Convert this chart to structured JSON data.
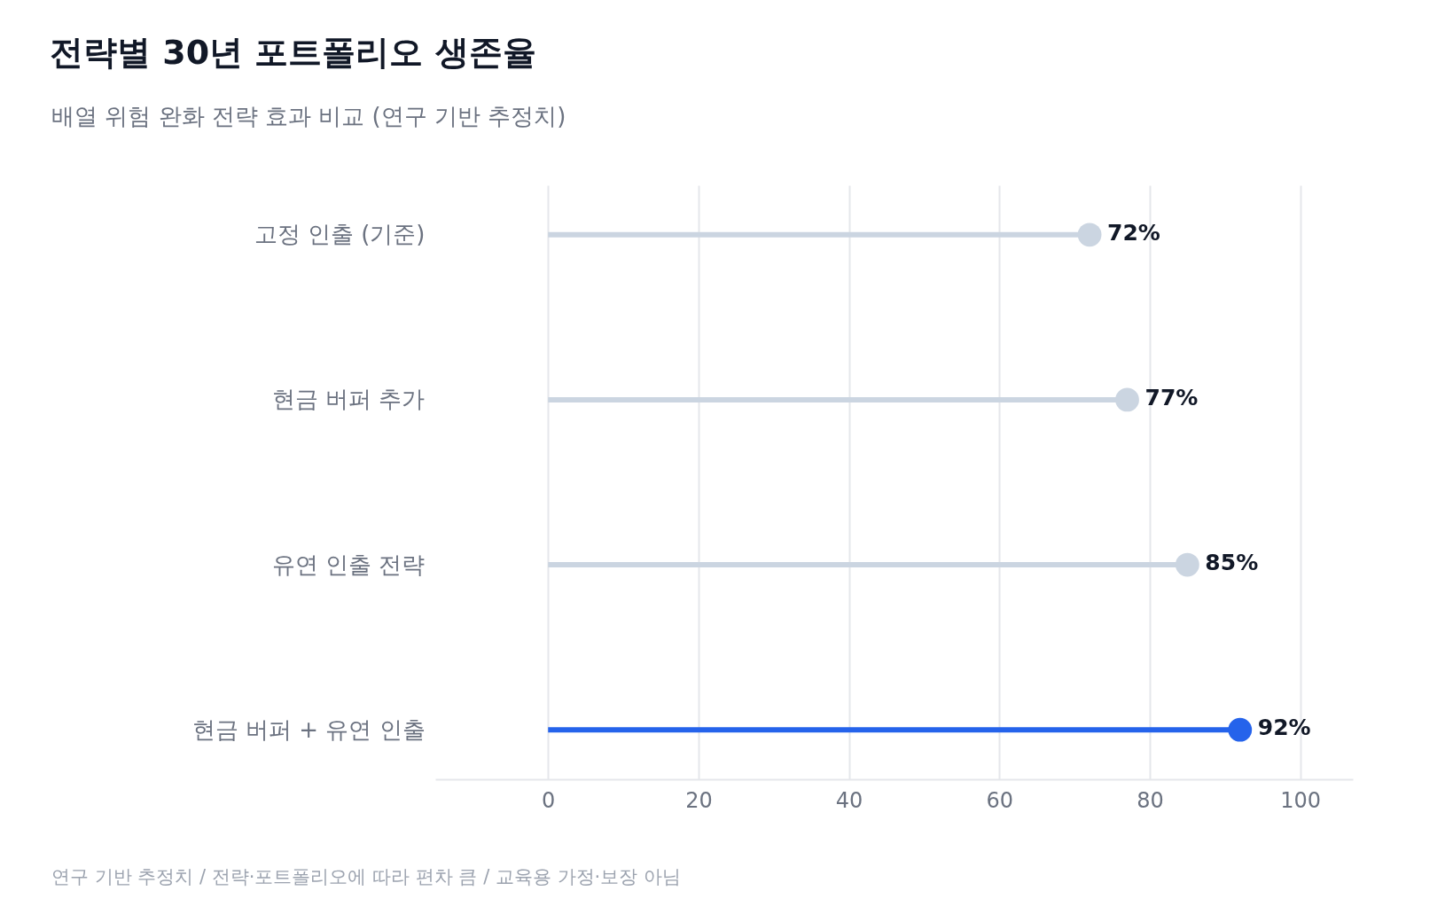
{
  "chart_data": {
    "type": "lollipop",
    "orientation": "horizontal",
    "title": "전략별 30년 포트폴리오 생존율",
    "subtitle": "배열 위험 완화 전략 효과 비교 (연구 기반 추정치)",
    "categories": [
      "고정 인출 (기준)",
      "현금 버퍼 추가",
      "유연 인출 전략",
      "현금 버퍼 + 유연 인출"
    ],
    "values": [
      72,
      77,
      85,
      92
    ],
    "colors": [
      "#cbd5e1",
      "#cbd5e1",
      "#cbd5e1",
      "#2563eb"
    ],
    "value_labels": [
      "72%",
      "77%",
      "85%",
      "92%"
    ],
    "xlim": [
      -15,
      107
    ],
    "xticks": [
      0,
      20,
      40,
      60,
      80,
      100
    ],
    "grid": "x",
    "annotations": [
      "연구 기반 추정치 / 전략·포트폴리오에 따라 편차 큼 / 교육용 가정·보장 아님"
    ]
  }
}
